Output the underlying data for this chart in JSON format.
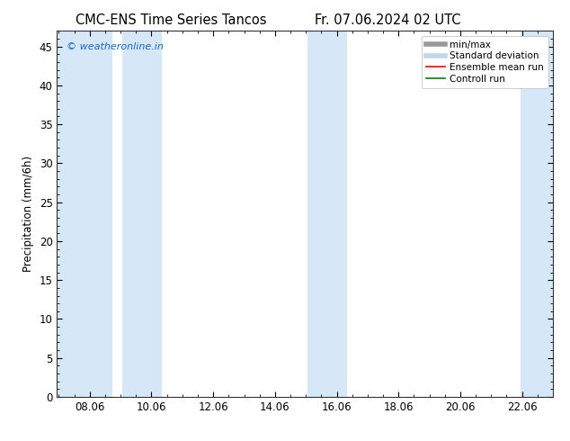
{
  "title_left": "CMC-ENS Time Series Tancos",
  "title_right": "Fr. 07.06.2024 02 UTC",
  "ylabel": "Precipitation (mm/6h)",
  "watermark": "© weatheronline.in",
  "watermark_color": "#1a66cc",
  "xlim_start": 7.0,
  "xlim_end": 23.06,
  "ylim_min": 0,
  "ylim_max": 47,
  "yticks": [
    0,
    5,
    10,
    15,
    20,
    25,
    30,
    35,
    40,
    45
  ],
  "xtick_labels": [
    "08.06",
    "10.06",
    "12.06",
    "14.06",
    "16.06",
    "18.06",
    "20.06",
    "22.06"
  ],
  "xtick_positions": [
    8.06,
    10.06,
    12.06,
    14.06,
    16.06,
    18.06,
    20.06,
    22.06
  ],
  "shaded_bands": [
    {
      "x_start": 7.0,
      "x_end": 8.8,
      "color": "#d6e8f7"
    },
    {
      "x_start": 9.1,
      "x_end": 10.4,
      "color": "#d6e8f7"
    },
    {
      "x_start": 15.1,
      "x_end": 16.4,
      "color": "#d6e8f7"
    },
    {
      "x_start": 22.0,
      "x_end": 23.1,
      "color": "#d6e8f7"
    }
  ],
  "legend_entries": [
    {
      "label": "min/max",
      "color": "#999999",
      "linewidth": 4,
      "linestyle": "-"
    },
    {
      "label": "Standard deviation",
      "color": "#c0d8ee",
      "linewidth": 4,
      "linestyle": "-"
    },
    {
      "label": "Ensemble mean run",
      "color": "#ff0000",
      "linewidth": 1.2,
      "linestyle": "-"
    },
    {
      "label": "Controll run",
      "color": "#008000",
      "linewidth": 1.2,
      "linestyle": "-"
    }
  ],
  "background_color": "#ffffff",
  "plot_bg_color": "#ffffff",
  "tick_direction": "in",
  "font_size_title": 10.5,
  "font_size_legend": 7.5,
  "font_size_ticks": 8.5,
  "font_size_ylabel": 8.5,
  "font_size_watermark": 8
}
